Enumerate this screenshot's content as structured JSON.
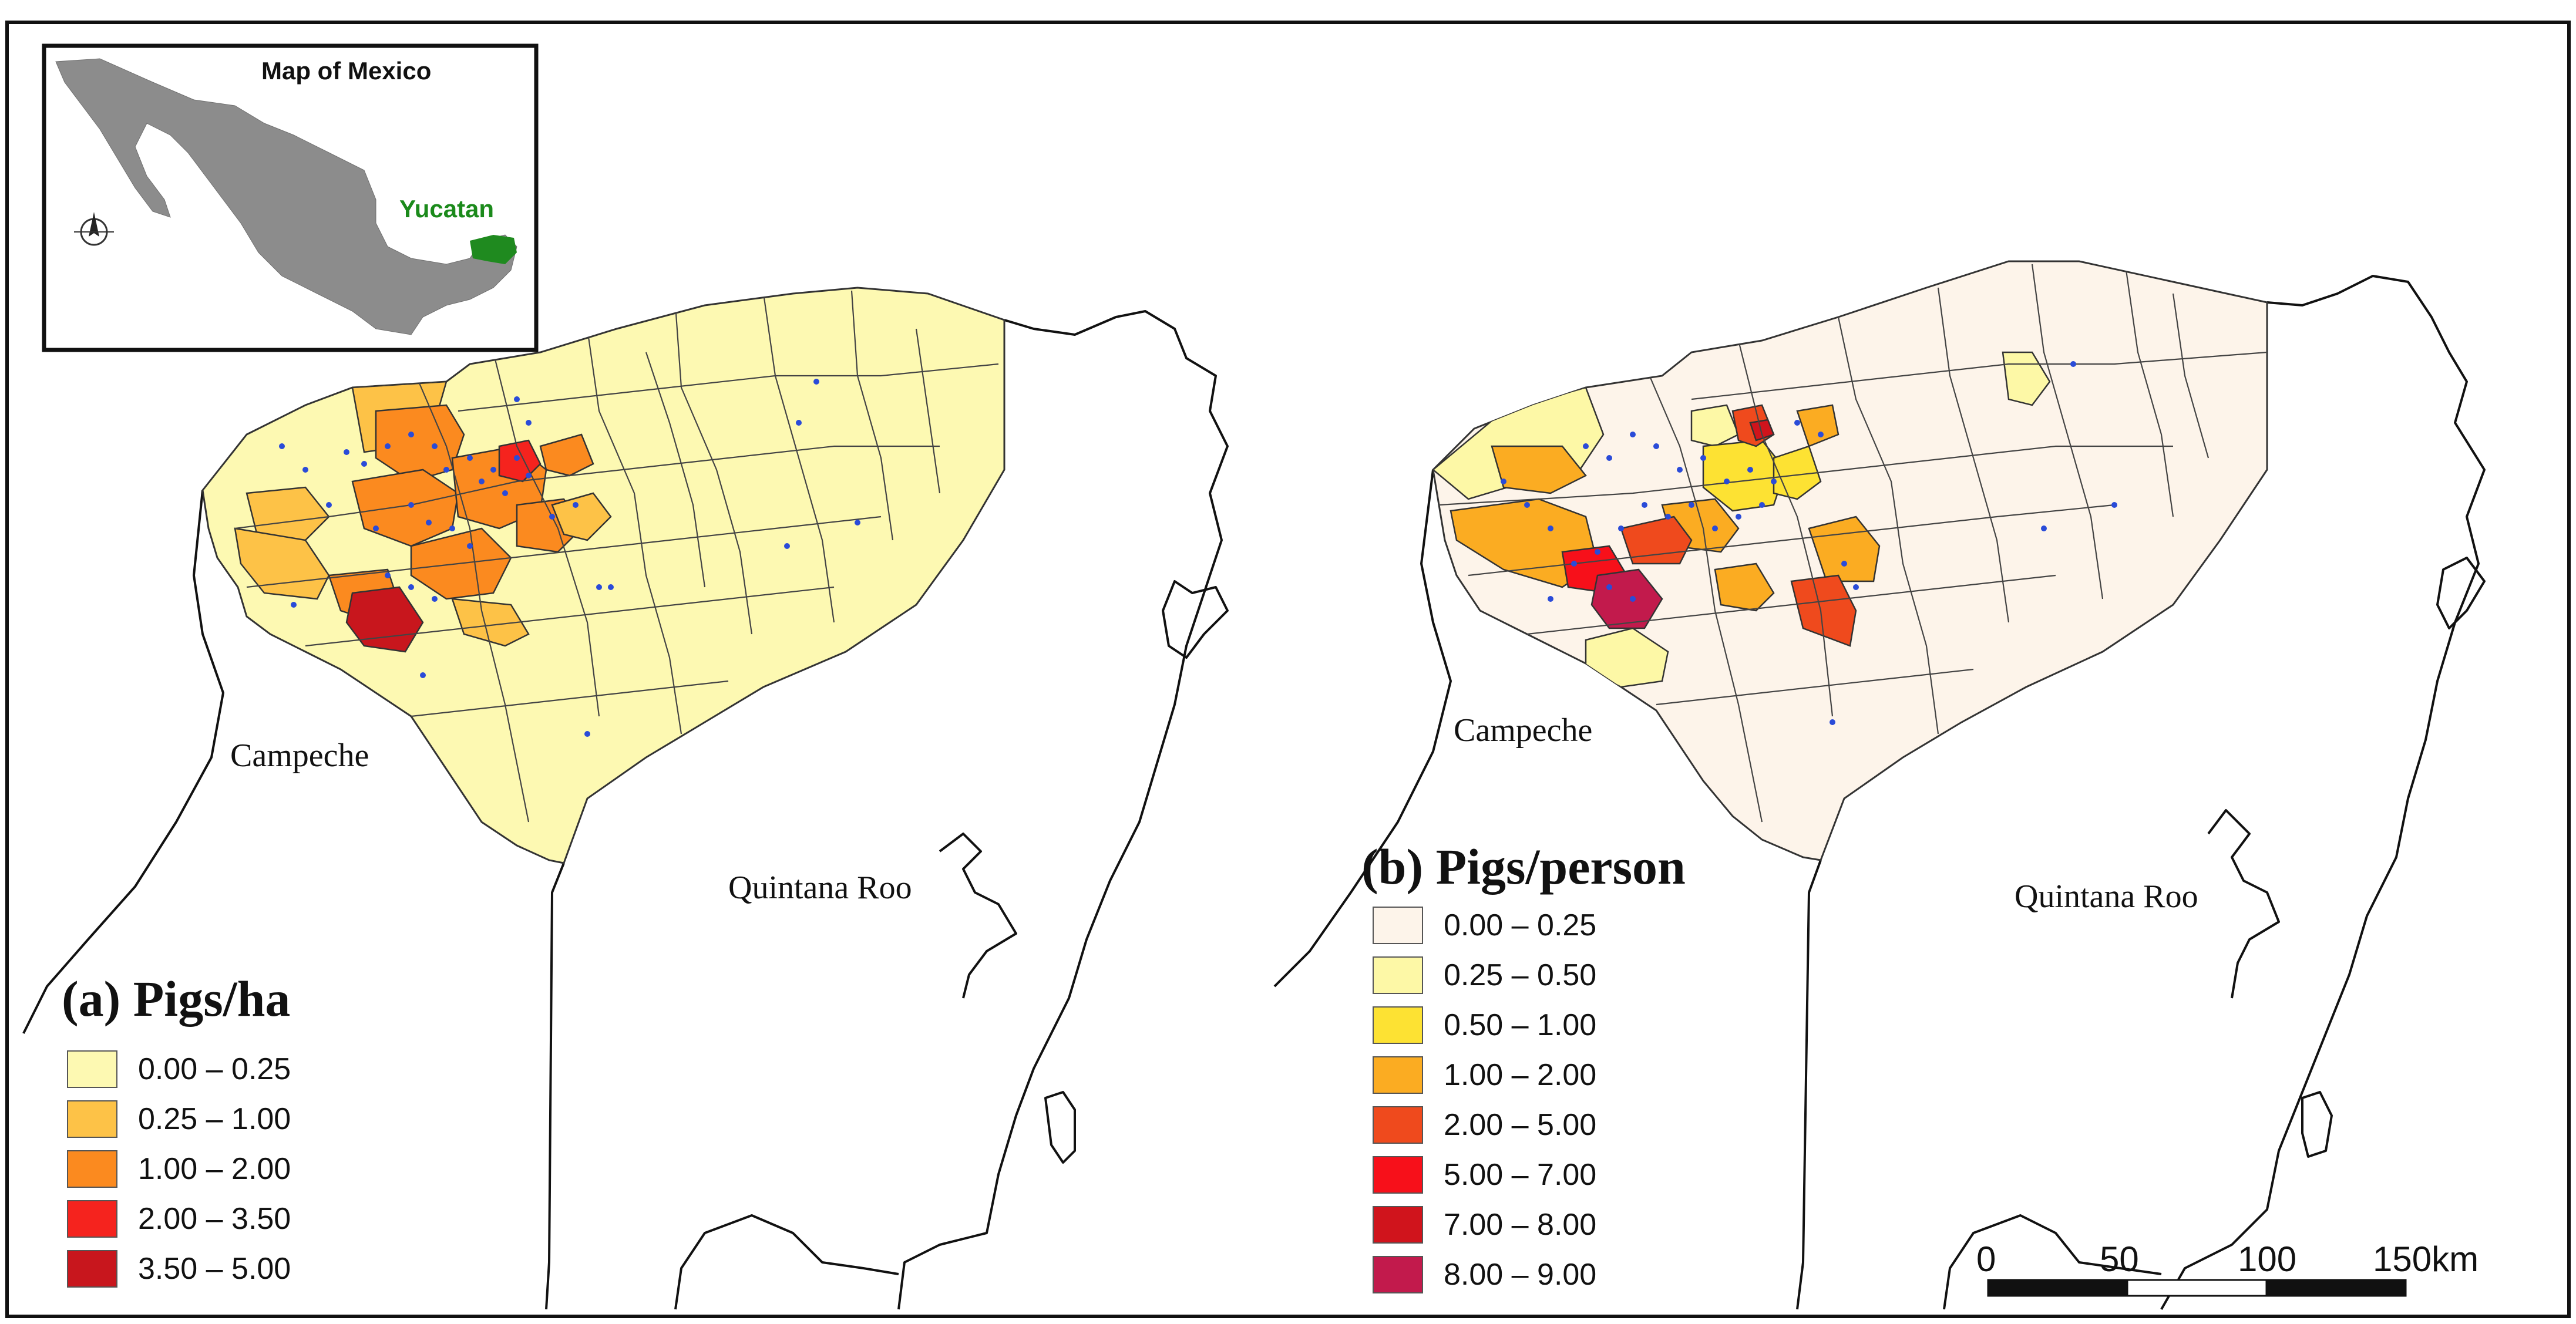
{
  "inset": {
    "title": "Map of Mexico",
    "highlight_label": "Yucatan",
    "highlight_color": "#1f8a1f",
    "country_color": "#8c8c8c",
    "north_icon": "north-arrow-icon"
  },
  "panel_a": {
    "title": "(a) Pigs/ha",
    "place_labels": {
      "campeche": "Campeche",
      "quintana_roo": "Quintana Roo"
    },
    "legend": [
      {
        "label": "0.00 – 0.25",
        "color": "#fdf9b2"
      },
      {
        "label": "0.25 – 1.00",
        "color": "#fdc247"
      },
      {
        "label": "1.00 – 2.00",
        "color": "#fb8a1f"
      },
      {
        "label": "2.00 – 3.50",
        "color": "#f5231e"
      },
      {
        "label": "3.50 – 5.00",
        "color": "#c8161d"
      }
    ]
  },
  "panel_b": {
    "title": "(b) Pigs/person",
    "place_labels": {
      "campeche": "Campeche",
      "quintana_roo": "Quintana Roo"
    },
    "legend": [
      {
        "label": "0.00 – 0.25",
        "color": "#fdf4ea"
      },
      {
        "label": "0.25 – 0.50",
        "color": "#fdf8a6"
      },
      {
        "label": "0.50 – 1.00",
        "color": "#fde233"
      },
      {
        "label": "1.00 – 2.00",
        "color": "#fbac22"
      },
      {
        "label": "2.00 – 5.00",
        "color": "#ef4a1d"
      },
      {
        "label": "5.00 – 7.00",
        "color": "#f7101a"
      },
      {
        "label": "7.00 – 8.00",
        "color": "#d0141c"
      },
      {
        "label": "8.00 – 9.00",
        "color": "#c21a4c"
      }
    ]
  },
  "farm_dot_color": "#2a4bd8",
  "scale_bar": {
    "labels": [
      "0",
      "50",
      "100",
      "150km"
    ]
  }
}
